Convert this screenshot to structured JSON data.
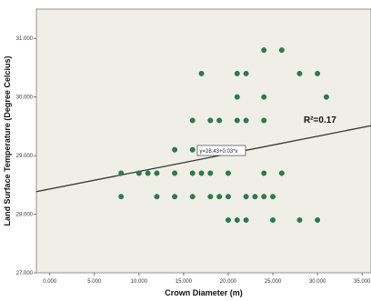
{
  "chart_data": {
    "type": "scatter",
    "xlabel": "Crown Diameter (m)",
    "ylabel": "Land Surface Temperature (Degree Celcius)",
    "xlim": [
      -1.5,
      36
    ],
    "ylim": [
      27.0,
      31.5
    ],
    "x_ticks": [
      0,
      5,
      10,
      15,
      20,
      25,
      30,
      35
    ],
    "x_tick_labels": [
      "0.000",
      "5.000",
      "10.000",
      "15.000",
      "20.000",
      "25.000",
      "30.000",
      "35.000"
    ],
    "y_ticks": [
      27,
      28,
      29,
      30,
      31
    ],
    "y_tick_labels": [
      "27.000",
      "28.000",
      "29.000",
      "30.000",
      "31.000"
    ],
    "grid": false,
    "legend": "none",
    "points": [
      {
        "x": 8,
        "y": 28.3
      },
      {
        "x": 8,
        "y": 28.7
      },
      {
        "x": 10,
        "y": 28.7
      },
      {
        "x": 11,
        "y": 28.7
      },
      {
        "x": 12,
        "y": 28.7
      },
      {
        "x": 12,
        "y": 28.3
      },
      {
        "x": 14,
        "y": 28.3
      },
      {
        "x": 14,
        "y": 28.7
      },
      {
        "x": 14,
        "y": 29.1
      },
      {
        "x": 16,
        "y": 28.3
      },
      {
        "x": 16,
        "y": 28.7
      },
      {
        "x": 16,
        "y": 29.1
      },
      {
        "x": 16,
        "y": 29.6
      },
      {
        "x": 17,
        "y": 30.4
      },
      {
        "x": 17,
        "y": 29.1
      },
      {
        "x": 17,
        "y": 28.7
      },
      {
        "x": 18,
        "y": 29.6
      },
      {
        "x": 18,
        "y": 29.1
      },
      {
        "x": 18,
        "y": 28.7
      },
      {
        "x": 18,
        "y": 28.3
      },
      {
        "x": 19,
        "y": 29.6
      },
      {
        "x": 19,
        "y": 29.1
      },
      {
        "x": 19,
        "y": 28.3
      },
      {
        "x": 20,
        "y": 29.1
      },
      {
        "x": 20,
        "y": 28.7
      },
      {
        "x": 20,
        "y": 28.3
      },
      {
        "x": 20,
        "y": 27.9
      },
      {
        "x": 21,
        "y": 30.4
      },
      {
        "x": 21,
        "y": 30.0
      },
      {
        "x": 21,
        "y": 29.6
      },
      {
        "x": 21,
        "y": 27.9
      },
      {
        "x": 22,
        "y": 30.4
      },
      {
        "x": 22,
        "y": 29.6
      },
      {
        "x": 22,
        "y": 28.3
      },
      {
        "x": 22,
        "y": 27.9
      },
      {
        "x": 23,
        "y": 28.3
      },
      {
        "x": 24,
        "y": 30.8
      },
      {
        "x": 24,
        "y": 30.0
      },
      {
        "x": 24,
        "y": 29.6
      },
      {
        "x": 24,
        "y": 28.7
      },
      {
        "x": 24,
        "y": 28.3
      },
      {
        "x": 25,
        "y": 28.3
      },
      {
        "x": 25,
        "y": 27.9
      },
      {
        "x": 26,
        "y": 30.8
      },
      {
        "x": 26,
        "y": 28.7
      },
      {
        "x": 28,
        "y": 30.4
      },
      {
        "x": 28,
        "y": 27.9
      },
      {
        "x": 30,
        "y": 30.4
      },
      {
        "x": 30,
        "y": 27.9
      },
      {
        "x": 31,
        "y": 30.0
      }
    ],
    "fit_line": {
      "intercept": 28.43,
      "slope": 0.03
    },
    "equation_label": "y=28.43+0.03*x",
    "r_squared_label": "R²=0.17",
    "colors": {
      "plot_background": "#efefe7",
      "marker": "#2d7d4e",
      "marker_edge": "#1d5a35",
      "fit_line": "#333333"
    }
  }
}
